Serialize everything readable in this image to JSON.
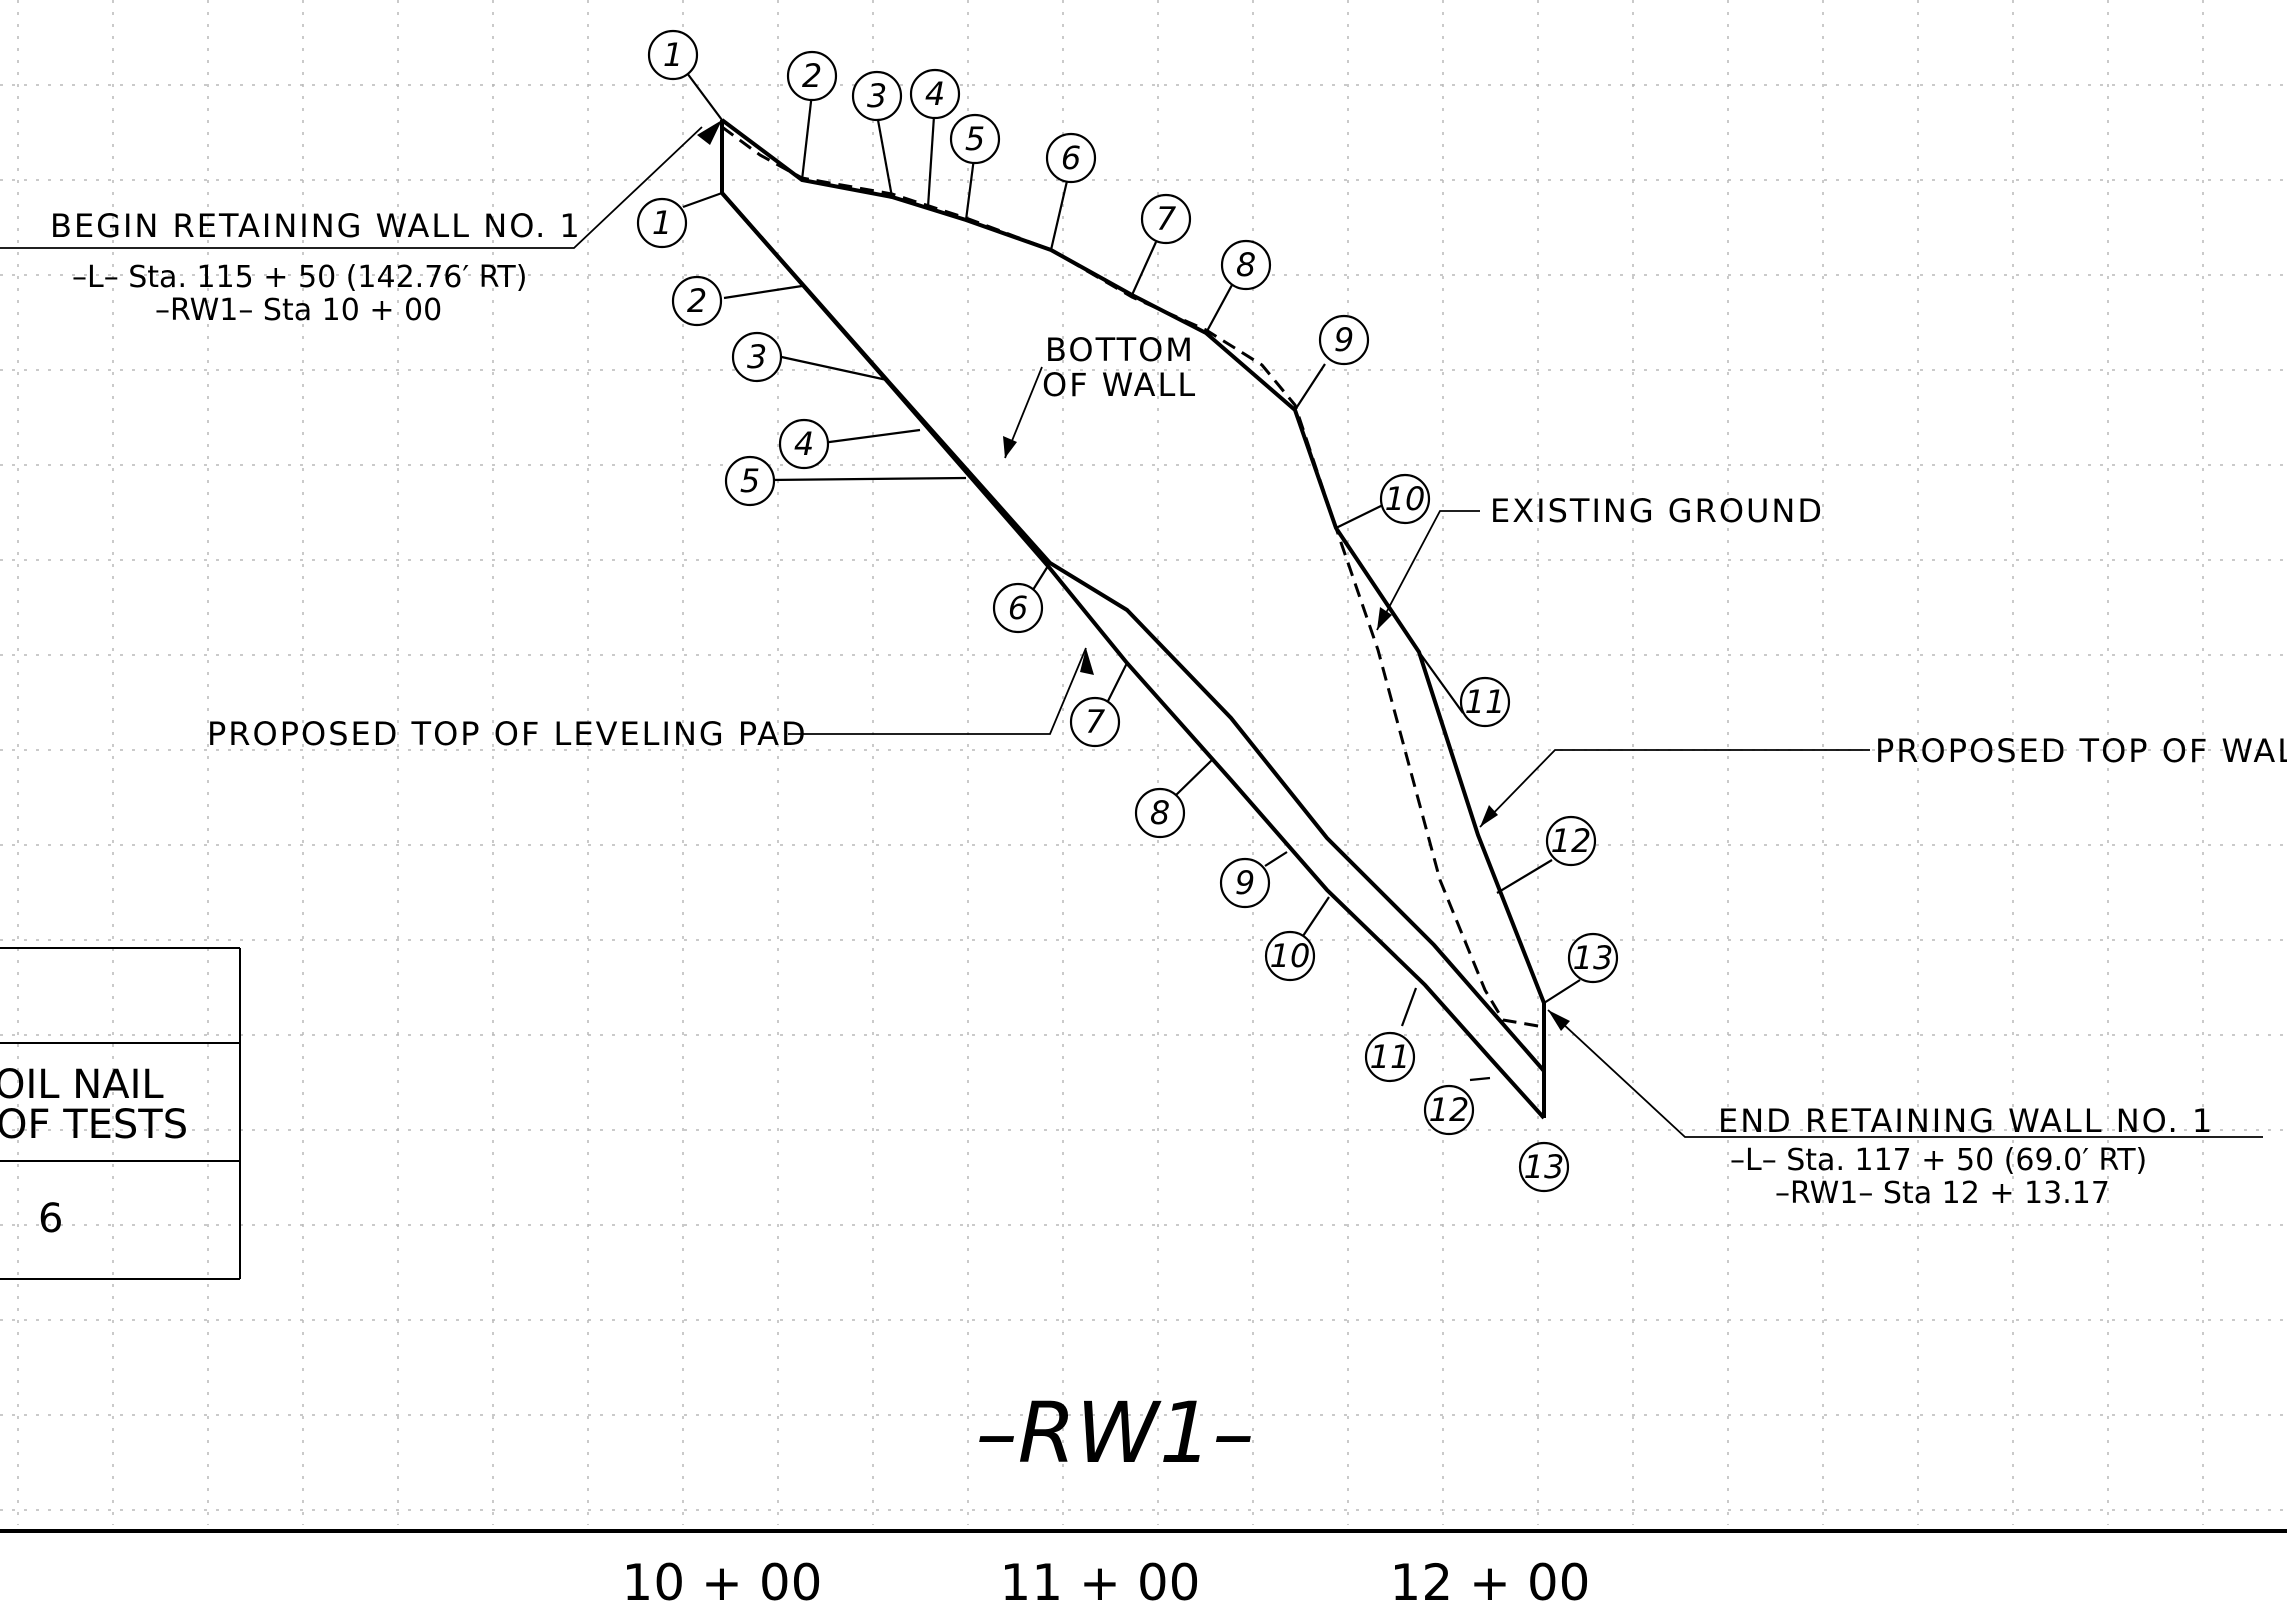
{
  "labels": {
    "begin_wall": "BEGIN  RETAINING  WALL  NO. 1",
    "begin_sta_l": "–L–  Sta. 115 + 50  (142.76′ RT)",
    "begin_sta_rw": "–RW1–  Sta  10 + 00",
    "bottom_of_wall_1": "BOTTOM",
    "bottom_of_wall_2": "OF  WALL",
    "existing_ground": "EXISTING  GROUND",
    "top_leveling_pad": "PROPOSED  TOP  OF  LEVELING  PAD",
    "top_of_wall": "PROPOSED  TOP  OF  WALL",
    "end_wall": "END  RETAINING  WALL  NO. 1",
    "end_sta_l": "–L–  Sta. 117 + 50  (69.0′ RT)",
    "end_sta_rw": "–RW1–  Sta  12 + 13.17"
  },
  "top_callouts": [
    "1",
    "2",
    "3",
    "4",
    "5",
    "6",
    "7",
    "8",
    "9",
    "10",
    "11",
    "12",
    "13"
  ],
  "bottom_callouts": [
    "1",
    "2",
    "3",
    "4",
    "5",
    "6",
    "7",
    "8",
    "9",
    "10",
    "11",
    "12",
    "13"
  ],
  "table": {
    "header_line1": "OIL NAIL",
    "header_line2": "OF TESTS",
    "value": "6"
  },
  "title": "–RW1–",
  "ruler_stations": [
    "10 + 00",
    "11 + 00",
    "12 + 00"
  ]
}
